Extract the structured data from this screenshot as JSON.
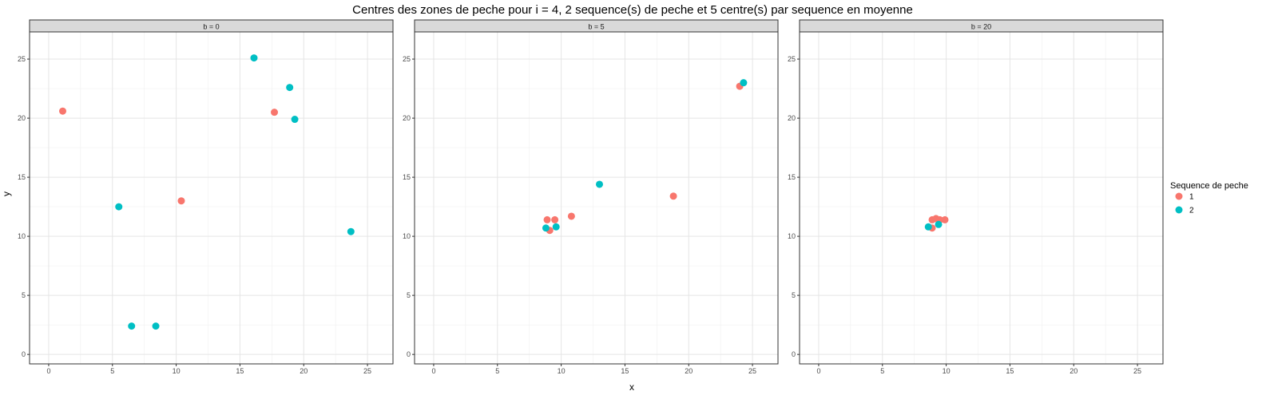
{
  "chart_data": {
    "type": "scatter",
    "title": "Centres des zones de peche pour i = 4, 2 sequence(s) de peche et 5 centre(s) par sequence en moyenne",
    "xlabel": "x",
    "ylabel": "y",
    "xlim": [
      -1.5,
      27
    ],
    "ylim": [
      -0.8,
      27.3
    ],
    "x_ticks": [
      0,
      5,
      10,
      15,
      20,
      25
    ],
    "y_ticks": [
      0,
      5,
      10,
      15,
      20,
      25
    ],
    "grid": true,
    "legend": {
      "title": "Sequence de peche",
      "position": "right"
    },
    "series": [
      {
        "name": "1",
        "color": "#F8766D"
      },
      {
        "name": "2",
        "color": "#00BFC4"
      }
    ],
    "facets": [
      {
        "label": "b = 0",
        "points": [
          {
            "series": "1",
            "x": 1.1,
            "y": 20.6
          },
          {
            "series": "1",
            "x": 10.4,
            "y": 13.0
          },
          {
            "series": "1",
            "x": 17.7,
            "y": 20.5
          },
          {
            "series": "2",
            "x": 5.5,
            "y": 12.5
          },
          {
            "series": "2",
            "x": 6.5,
            "y": 2.4
          },
          {
            "series": "2",
            "x": 8.4,
            "y": 2.4
          },
          {
            "series": "2",
            "x": 16.1,
            "y": 25.1
          },
          {
            "series": "2",
            "x": 18.9,
            "y": 22.6
          },
          {
            "series": "2",
            "x": 19.3,
            "y": 19.9
          },
          {
            "series": "2",
            "x": 23.7,
            "y": 10.4
          }
        ]
      },
      {
        "label": "b = 5",
        "points": [
          {
            "series": "1",
            "x": 8.9,
            "y": 11.4
          },
          {
            "series": "1",
            "x": 9.5,
            "y": 11.4
          },
          {
            "series": "1",
            "x": 9.1,
            "y": 10.5
          },
          {
            "series": "1",
            "x": 10.8,
            "y": 11.7
          },
          {
            "series": "1",
            "x": 18.8,
            "y": 13.4
          },
          {
            "series": "1",
            "x": 24.0,
            "y": 22.7
          },
          {
            "series": "2",
            "x": 8.8,
            "y": 10.7
          },
          {
            "series": "2",
            "x": 9.6,
            "y": 10.8
          },
          {
            "series": "2",
            "x": 13.0,
            "y": 14.4
          },
          {
            "series": "2",
            "x": 24.3,
            "y": 23.0
          }
        ]
      },
      {
        "label": "b = 20",
        "points": [
          {
            "series": "1",
            "x": 8.9,
            "y": 11.4
          },
          {
            "series": "1",
            "x": 9.2,
            "y": 11.5
          },
          {
            "series": "1",
            "x": 9.5,
            "y": 11.4
          },
          {
            "series": "1",
            "x": 9.9,
            "y": 11.4
          },
          {
            "series": "1",
            "x": 8.9,
            "y": 10.7
          },
          {
            "series": "2",
            "x": 8.6,
            "y": 10.8
          },
          {
            "series": "2",
            "x": 9.4,
            "y": 11.0
          }
        ]
      }
    ]
  }
}
